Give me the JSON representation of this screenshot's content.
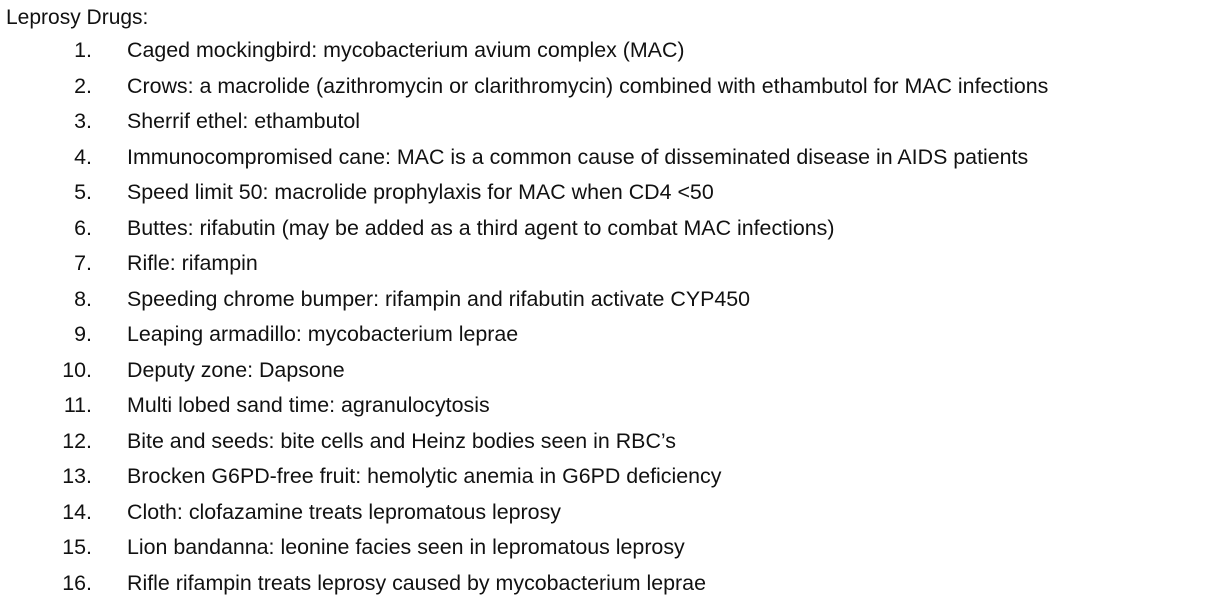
{
  "document": {
    "title": "Leprosy Drugs:",
    "items": [
      {
        "num": "1.",
        "text": "Caged mockingbird: mycobacterium avium complex (MAC)"
      },
      {
        "num": "2.",
        "text": "Crows: a macrolide (azithromycin or clarithromycin) combined with ethambutol for MAC infections"
      },
      {
        "num": "3.",
        "text": "Sherrif ethel: ethambutol"
      },
      {
        "num": "4.",
        "text": "Immunocompromised cane: MAC is a common cause of disseminated disease in AIDS patients"
      },
      {
        "num": "5.",
        "text": "Speed limit 50: macrolide prophylaxis for MAC when CD4 <50"
      },
      {
        "num": "6.",
        "text": "Buttes: rifabutin (may be added as a third agent to combat MAC infections)"
      },
      {
        "num": "7.",
        "text": "Rifle: rifampin"
      },
      {
        "num": "8.",
        "text": "Speeding chrome bumper: rifampin and rifabutin activate CYP450"
      },
      {
        "num": "9.",
        "text": "Leaping armadillo: mycobacterium leprae"
      },
      {
        "num": "10.",
        "text": "Deputy zone: Dapsone"
      },
      {
        "num": "11.",
        "text": "Multi lobed sand time: agranulocytosis"
      },
      {
        "num": "12.",
        "text": "Bite and seeds: bite cells and Heinz bodies seen in RBC’s"
      },
      {
        "num": "13.",
        "text": "Brocken G6PD-free fruit: hemolytic anemia in G6PD deficiency"
      },
      {
        "num": "14.",
        "text": "Cloth: clofazamine treats lepromatous leprosy"
      },
      {
        "num": "15.",
        "text": "Lion bandanna: leonine facies seen in lepromatous leprosy"
      },
      {
        "num": "16.",
        "text": "Rifle rifampin treats leprosy caused by mycobacterium leprae"
      }
    ]
  }
}
